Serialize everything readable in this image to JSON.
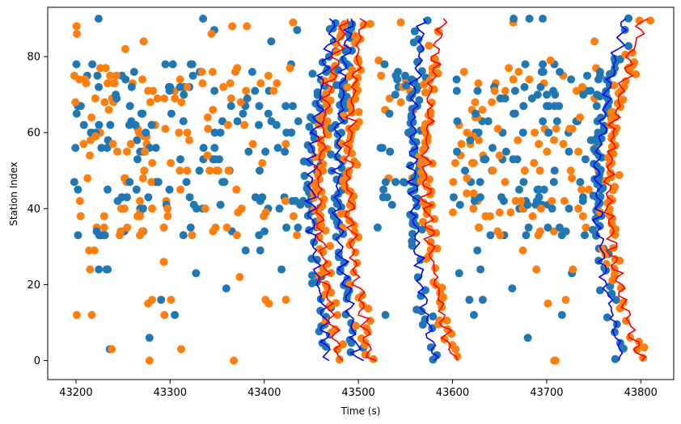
{
  "chart_data": {
    "type": "scatter",
    "title": "",
    "xlabel": "Time (s)",
    "ylabel": "Station Index",
    "xlim": [
      43170,
      43835
    ],
    "ylim": [
      -5,
      93
    ],
    "xticks": [
      43200,
      43300,
      43400,
      43500,
      43600,
      43700,
      43800
    ],
    "yticks": [
      0,
      20,
      40,
      60,
      80
    ],
    "grid": false,
    "colors": {
      "blue": "#1f77b4",
      "orange": "#ff7f0e",
      "line_blue": "#0000ff",
      "line_red": "#ff0000"
    },
    "scatter_blue_levels": [
      3,
      6,
      12,
      16,
      19,
      23,
      24,
      29,
      33,
      34,
      35,
      40,
      41,
      42,
      43,
      45,
      47,
      50,
      53,
      55,
      56,
      58,
      60,
      62,
      63,
      65,
      67,
      69,
      70,
      71,
      72,
      74,
      75,
      76,
      78,
      80,
      84,
      87,
      90
    ],
    "scatter_orange_levels": [
      0,
      1,
      3,
      12,
      15,
      16,
      18,
      22,
      24,
      26,
      29,
      33,
      34,
      35,
      38,
      39,
      40,
      42,
      44,
      45,
      47,
      48,
      50,
      52,
      54,
      55,
      57,
      58,
      59,
      60,
      61,
      62,
      64,
      66,
      68,
      69,
      71,
      72,
      73,
      74,
      75,
      76,
      77,
      79,
      82,
      84,
      86,
      88,
      89
    ],
    "notable_points": [
      {
        "series": "blue",
        "x": 43224,
        "y": 90
      },
      {
        "series": "blue",
        "x": 43236,
        "y": 3
      },
      {
        "series": "orange",
        "x": 43238,
        "y": 3
      },
      {
        "series": "orange",
        "x": 43201,
        "y": 86
      },
      {
        "series": "blue",
        "x": 43665,
        "y": 90
      },
      {
        "series": "orange",
        "x": 43344,
        "y": 86
      },
      {
        "series": "blue",
        "x": 43680,
        "y": 6
      },
      {
        "series": "orange",
        "x": 43708,
        "y": 0
      },
      {
        "series": "orange",
        "x": 43405,
        "y": 15
      },
      {
        "series": "orange",
        "x": 43545,
        "y": 89
      },
      {
        "series": "blue",
        "x": 43435,
        "y": 87
      }
    ],
    "moveout_curves": [
      {
        "color": "blue",
        "x_at_station_0": 43470,
        "x_at_station_90": 43475,
        "x_mid_min": 43450
      },
      {
        "color": "red",
        "x_at_station_0": 43480,
        "x_at_station_90": 43485,
        "x_mid_min": 43458
      },
      {
        "color": "blue",
        "x_at_station_0": 43500,
        "x_at_station_90": 43493,
        "x_mid_min": 43478
      },
      {
        "color": "red",
        "x_at_station_0": 43513,
        "x_at_station_90": 43505,
        "x_mid_min": 43490
      },
      {
        "color": "blue",
        "x_at_station_0": 43580,
        "x_at_station_90": 43568,
        "x_mid_min": 43558
      },
      {
        "color": "red",
        "x_at_station_0": 43600,
        "x_at_station_90": 43588,
        "x_mid_min": 43572
      },
      {
        "color": "blue",
        "x_at_station_0": 43780,
        "x_at_station_90": 43784,
        "x_mid_min": 43755
      },
      {
        "color": "red",
        "x_at_station_0": 43800,
        "x_at_station_90": 43803,
        "x_mid_min": 43765
      }
    ]
  }
}
